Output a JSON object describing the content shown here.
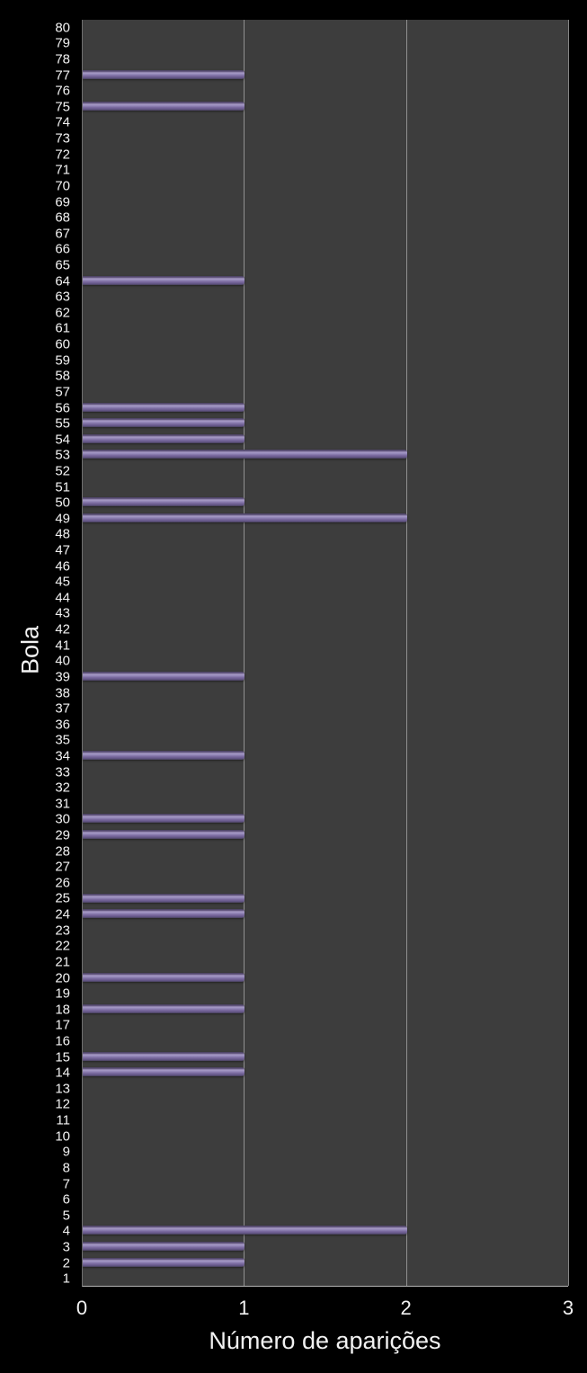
{
  "chart_data": {
    "type": "bar",
    "orientation": "horizontal",
    "title": "",
    "xlabel": "Número de aparições",
    "ylabel": "Bola",
    "xlim": [
      0,
      3
    ],
    "x_ticks": [
      0,
      1,
      2,
      3
    ],
    "grid": "vertical gridlines at x = 1, 2, 3",
    "legend": false,
    "categories": [
      1,
      2,
      3,
      4,
      5,
      6,
      7,
      8,
      9,
      10,
      11,
      12,
      13,
      14,
      15,
      16,
      17,
      18,
      19,
      20,
      21,
      22,
      23,
      24,
      25,
      26,
      27,
      28,
      29,
      30,
      31,
      32,
      33,
      34,
      35,
      36,
      37,
      38,
      39,
      40,
      41,
      42,
      43,
      44,
      45,
      46,
      47,
      48,
      49,
      50,
      51,
      52,
      53,
      54,
      55,
      56,
      57,
      58,
      59,
      60,
      61,
      62,
      63,
      64,
      65,
      66,
      67,
      68,
      69,
      70,
      71,
      72,
      73,
      74,
      75,
      76,
      77,
      78,
      79,
      80
    ],
    "values": [
      0,
      1,
      1,
      2,
      0,
      0,
      0,
      0,
      0,
      0,
      0,
      0,
      0,
      1,
      1,
      0,
      0,
      1,
      0,
      1,
      0,
      0,
      0,
      1,
      1,
      0,
      0,
      0,
      1,
      1,
      0,
      0,
      0,
      1,
      0,
      0,
      0,
      0,
      1,
      0,
      0,
      0,
      0,
      0,
      0,
      0,
      0,
      0,
      2,
      1,
      0,
      0,
      2,
      1,
      1,
      1,
      0,
      0,
      0,
      0,
      0,
      0,
      0,
      1,
      0,
      0,
      0,
      0,
      0,
      0,
      0,
      0,
      0,
      0,
      1,
      0,
      1,
      0,
      0,
      0
    ],
    "colors": {
      "background": "#000000",
      "plot_background": "#3d3d3d",
      "gridline": "#a6a6a6",
      "axis_text": "#f2f2f2",
      "bar_body": "#7b6ba0",
      "bar_highlight": "#a89bc7",
      "bar_edge": "#474059"
    }
  }
}
